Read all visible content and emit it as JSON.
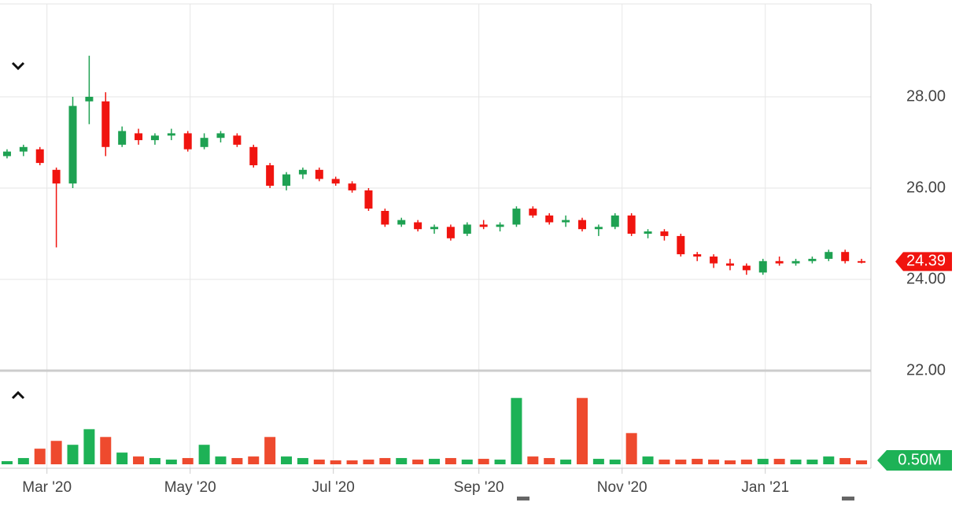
{
  "chart_data": {
    "type": "candlestick",
    "x": [
      -17,
      -10,
      -3,
      4,
      11,
      18,
      25,
      32,
      39,
      46,
      53,
      60,
      67,
      74,
      81,
      88,
      95,
      102,
      109,
      116,
      123,
      130,
      137,
      144,
      151,
      158,
      165,
      172,
      179,
      186,
      193,
      200,
      207,
      214,
      221,
      228,
      235,
      242,
      249,
      256,
      263,
      270,
      277,
      284,
      291,
      298,
      305,
      312,
      319,
      326,
      333,
      340,
      347
    ],
    "open": [
      26.7,
      26.8,
      26.85,
      26.4,
      26.1,
      27.9,
      27.9,
      26.95,
      27.2,
      27.05,
      27.15,
      27.2,
      26.9,
      27.1,
      27.15,
      26.9,
      26.5,
      26.05,
      26.3,
      26.4,
      26.2,
      26.1,
      25.95,
      25.5,
      25.2,
      25.25,
      25.1,
      25.15,
      25.0,
      25.2,
      25.15,
      25.2,
      25.55,
      25.4,
      25.25,
      25.3,
      25.1,
      25.15,
      25.4,
      25.0,
      25.05,
      24.95,
      24.55,
      24.5,
      24.35,
      24.3,
      24.15,
      24.4,
      24.35,
      24.4,
      24.45,
      24.6,
      24.4
    ],
    "high": [
      26.85,
      26.95,
      26.9,
      26.45,
      28.0,
      28.9,
      28.1,
      27.35,
      27.3,
      27.2,
      27.3,
      27.25,
      27.2,
      27.25,
      27.2,
      26.95,
      26.55,
      26.35,
      26.45,
      26.45,
      26.25,
      26.15,
      26.0,
      25.55,
      25.35,
      25.3,
      25.2,
      25.2,
      25.25,
      25.3,
      25.25,
      25.6,
      25.6,
      25.45,
      25.4,
      25.35,
      25.2,
      25.45,
      25.45,
      25.1,
      25.1,
      25.0,
      24.6,
      24.55,
      24.45,
      24.35,
      24.45,
      24.5,
      24.45,
      24.5,
      24.65,
      24.65,
      24.45
    ],
    "low": [
      26.65,
      26.7,
      26.5,
      24.7,
      26.0,
      27.4,
      26.7,
      26.9,
      26.95,
      26.95,
      27.05,
      26.8,
      26.85,
      27.0,
      26.9,
      26.45,
      26.0,
      25.95,
      26.2,
      26.15,
      26.05,
      25.9,
      25.5,
      25.15,
      25.15,
      25.05,
      25.0,
      24.85,
      24.95,
      25.1,
      25.05,
      25.15,
      25.35,
      25.2,
      25.15,
      25.05,
      24.95,
      25.1,
      24.95,
      24.9,
      24.85,
      24.5,
      24.4,
      24.25,
      24.2,
      24.1,
      24.1,
      24.3,
      24.3,
      24.35,
      24.4,
      24.35,
      24.35
    ],
    "close": [
      26.8,
      26.9,
      26.55,
      26.1,
      27.8,
      28.0,
      26.9,
      27.25,
      27.05,
      27.15,
      27.2,
      26.85,
      27.1,
      27.2,
      26.95,
      26.5,
      26.05,
      26.3,
      26.4,
      26.2,
      26.1,
      25.95,
      25.55,
      25.2,
      25.3,
      25.1,
      25.15,
      24.9,
      25.2,
      25.15,
      25.2,
      25.55,
      25.4,
      25.25,
      25.3,
      25.1,
      25.15,
      25.4,
      25.0,
      25.05,
      24.95,
      24.55,
      24.5,
      24.35,
      24.3,
      24.2,
      24.4,
      24.35,
      24.4,
      24.45,
      24.6,
      24.4,
      24.39
    ],
    "volume": [
      0.4,
      0.8,
      2.0,
      3.0,
      2.5,
      4.5,
      3.5,
      1.5,
      1.0,
      0.8,
      0.6,
      0.8,
      2.5,
      1.0,
      0.8,
      1.0,
      3.5,
      1.0,
      0.8,
      0.6,
      0.5,
      0.5,
      0.6,
      0.8,
      0.8,
      0.6,
      0.7,
      0.8,
      0.6,
      0.7,
      0.6,
      8.5,
      1.0,
      0.8,
      0.6,
      8.5,
      0.7,
      0.6,
      4.0,
      1.0,
      0.6,
      0.6,
      0.7,
      0.6,
      0.5,
      0.6,
      0.7,
      0.7,
      0.6,
      0.6,
      1.0,
      0.8,
      0.5
    ],
    "up_color": "#1ea152",
    "down_color": "#f0140f",
    "volume_up_color": "#1db256",
    "volume_down_color": "#ee4a2e",
    "xlim": [
      -20,
      351
    ],
    "xticks": [
      {
        "value": 0,
        "label": "Mar '20"
      },
      {
        "value": 61,
        "label": "May '20"
      },
      {
        "value": 122,
        "label": "Jul '20"
      },
      {
        "value": 184,
        "label": "Sep '20"
      },
      {
        "value": 245,
        "label": "Nov '20"
      },
      {
        "value": 306,
        "label": "Jan '21"
      }
    ],
    "ylim": [
      22,
      30
    ],
    "yticks": [
      {
        "value": 22,
        "label": "22.00"
      },
      {
        "value": 24,
        "label": "24.00"
      },
      {
        "value": 26,
        "label": "26.00"
      },
      {
        "value": 28,
        "label": "28.00"
      }
    ],
    "volume_lim": [
      0,
      12
    ],
    "volume_marker": {
      "value": 0.5,
      "label": "0.50M"
    },
    "grid": true
  }
}
